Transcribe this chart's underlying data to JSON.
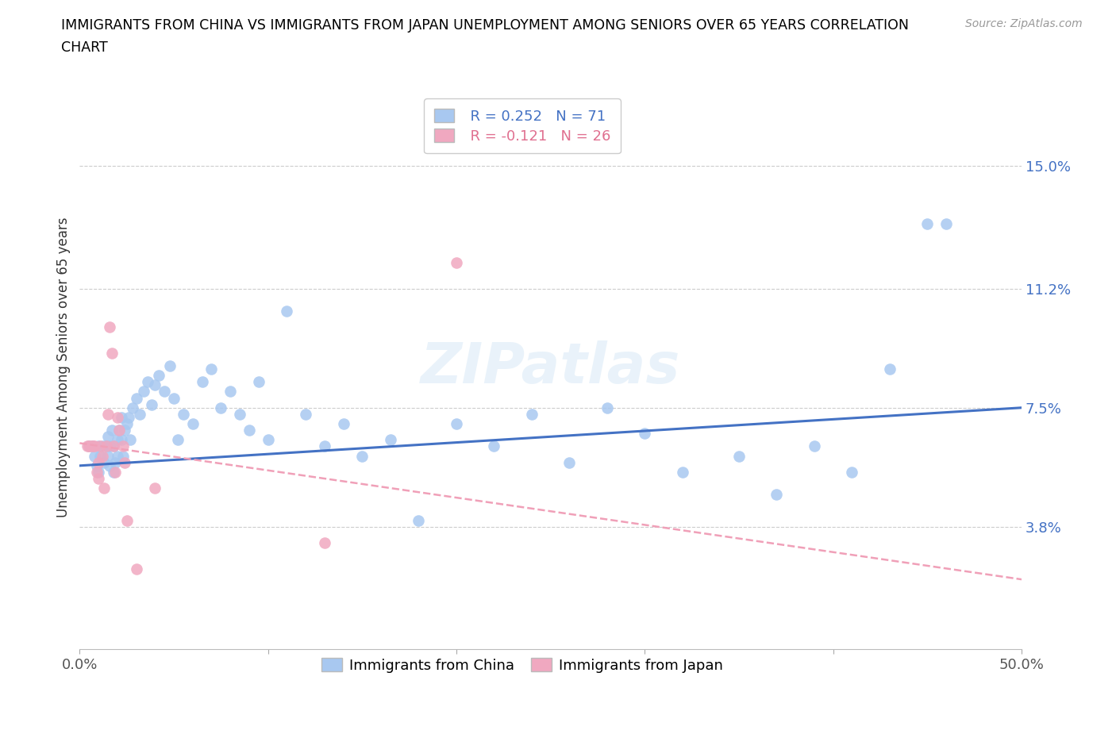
{
  "title_line1": "IMMIGRANTS FROM CHINA VS IMMIGRANTS FROM JAPAN UNEMPLOYMENT AMONG SENIORS OVER 65 YEARS CORRELATION",
  "title_line2": "CHART",
  "source": "Source: ZipAtlas.com",
  "ylabel": "Unemployment Among Seniors over 65 years",
  "xlim": [
    0.0,
    0.5
  ],
  "ylim": [
    0.0,
    0.175
  ],
  "ytick_positions": [
    0.038,
    0.075,
    0.112,
    0.15
  ],
  "ytick_labels": [
    "3.8%",
    "7.5%",
    "11.2%",
    "15.0%"
  ],
  "xtick_positions": [
    0.0,
    0.1,
    0.2,
    0.3,
    0.4,
    0.5
  ],
  "xtick_labels": [
    "0.0%",
    "",
    "",
    "",
    "",
    "50.0%"
  ],
  "china_color": "#a8c8f0",
  "japan_color": "#f0a8c0",
  "china_line_color": "#4472c4",
  "japan_line_color": "#f0a0b8",
  "legend_china_r": "R = 0.252",
  "legend_china_n": "N = 71",
  "legend_japan_r": "R = -0.121",
  "legend_japan_n": "N = 26",
  "watermark": "ZIPatlas",
  "china_trendline": [
    0.0,
    0.5,
    0.057,
    0.075
  ],
  "japan_trendline": [
    0.0,
    0.52,
    0.064,
    0.02
  ],
  "china_points_x": [
    0.005,
    0.007,
    0.008,
    0.009,
    0.01,
    0.01,
    0.011,
    0.012,
    0.013,
    0.014,
    0.015,
    0.015,
    0.016,
    0.016,
    0.017,
    0.018,
    0.018,
    0.019,
    0.02,
    0.02,
    0.021,
    0.022,
    0.022,
    0.023,
    0.024,
    0.025,
    0.026,
    0.027,
    0.028,
    0.03,
    0.032,
    0.034,
    0.036,
    0.038,
    0.04,
    0.042,
    0.045,
    0.048,
    0.05,
    0.052,
    0.055,
    0.06,
    0.065,
    0.07,
    0.075,
    0.08,
    0.085,
    0.09,
    0.095,
    0.1,
    0.11,
    0.12,
    0.13,
    0.14,
    0.15,
    0.165,
    0.18,
    0.2,
    0.22,
    0.24,
    0.26,
    0.28,
    0.3,
    0.32,
    0.35,
    0.37,
    0.39,
    0.41,
    0.43,
    0.45,
    0.46
  ],
  "china_points_y": [
    0.063,
    0.063,
    0.06,
    0.057,
    0.063,
    0.055,
    0.06,
    0.063,
    0.058,
    0.063,
    0.066,
    0.06,
    0.063,
    0.057,
    0.068,
    0.063,
    0.055,
    0.058,
    0.065,
    0.06,
    0.068,
    0.072,
    0.065,
    0.06,
    0.068,
    0.07,
    0.072,
    0.065,
    0.075,
    0.078,
    0.073,
    0.08,
    0.083,
    0.076,
    0.082,
    0.085,
    0.08,
    0.088,
    0.078,
    0.065,
    0.073,
    0.07,
    0.083,
    0.087,
    0.075,
    0.08,
    0.073,
    0.068,
    0.083,
    0.065,
    0.105,
    0.073,
    0.063,
    0.07,
    0.06,
    0.065,
    0.04,
    0.07,
    0.063,
    0.073,
    0.058,
    0.075,
    0.067,
    0.055,
    0.06,
    0.048,
    0.063,
    0.055,
    0.087,
    0.132,
    0.132
  ],
  "japan_points_x": [
    0.004,
    0.005,
    0.006,
    0.007,
    0.008,
    0.009,
    0.01,
    0.01,
    0.011,
    0.012,
    0.013,
    0.014,
    0.015,
    0.016,
    0.017,
    0.018,
    0.019,
    0.02,
    0.021,
    0.023,
    0.024,
    0.025,
    0.03,
    0.04,
    0.13,
    0.2
  ],
  "japan_points_y": [
    0.063,
    0.063,
    0.063,
    0.063,
    0.063,
    0.055,
    0.058,
    0.053,
    0.063,
    0.06,
    0.05,
    0.063,
    0.073,
    0.1,
    0.092,
    0.063,
    0.055,
    0.072,
    0.068,
    0.063,
    0.058,
    0.04,
    0.025,
    0.05,
    0.033,
    0.12
  ]
}
